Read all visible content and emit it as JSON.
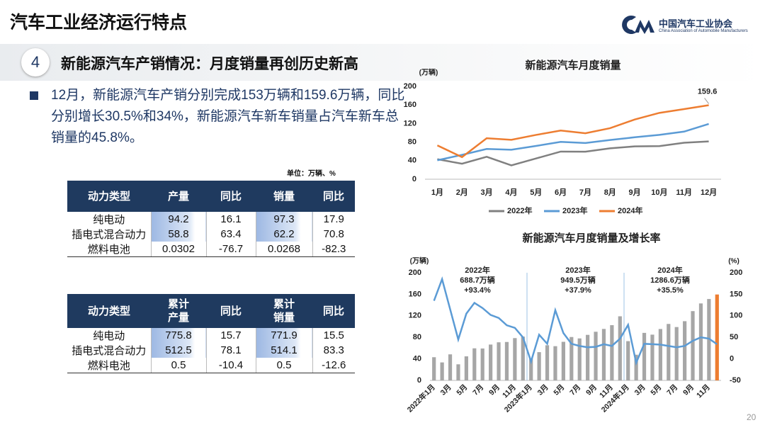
{
  "header": {
    "title": "汽车工业经济运行特点",
    "logo_cn": "中国汽车工业协会",
    "logo_en": "China Association of Automobile Manufacturers",
    "page": "20"
  },
  "section": {
    "number": "4",
    "heading": "新能源汽车产销情况：月度销量再创历史新高"
  },
  "bullet": "12月，新能源汽车产销分别完成153万辆和159.6万辆，同比分别增长30.5%和34%，新能源汽车新车销量占汽车新车总销量的45.8%。",
  "unit": "单位：万辆、%",
  "tables": [
    {
      "header": [
        "动力类型",
        "产量",
        "同比",
        "销量",
        "同比"
      ],
      "rows": [
        [
          "纯电动",
          "94.2",
          "16.1",
          "97.3",
          "17.9"
        ],
        [
          "插电式混合动力",
          "58.8",
          "63.4",
          "62.2",
          "70.8"
        ],
        [
          "燃料电池",
          "0.0302",
          "-76.7",
          "0.0268",
          "-82.3"
        ]
      ]
    },
    {
      "header": [
        "动力类型",
        "累计产量",
        "同比",
        "累计销量",
        "同比"
      ],
      "rows": [
        [
          "纯电动",
          "775.8",
          "15.7",
          "771.9",
          "15.5"
        ],
        [
          "插电式混合动力",
          "512.5",
          "78.1",
          "514.1",
          "83.3"
        ],
        [
          "燃料电池",
          "0.5",
          "-10.4",
          "0.5",
          "-12.6"
        ]
      ]
    }
  ],
  "chart_data": [
    {
      "type": "line",
      "title": "新能源汽车月度销量",
      "y_label": "(万辆)",
      "categories": [
        "1月",
        "2月",
        "3月",
        "4月",
        "5月",
        "6月",
        "7月",
        "8月",
        "9月",
        "10月",
        "11月",
        "12月"
      ],
      "series": [
        {
          "name": "2022年",
          "color": "#808080",
          "values": [
            43.1,
            33.4,
            48.4,
            29.9,
            44.7,
            59.6,
            59.3,
            66.6,
            70.8,
            71.4,
            78.6,
            81.4
          ]
        },
        {
          "name": "2023年",
          "color": "#5b9bd5",
          "values": [
            40.8,
            52.5,
            65.3,
            63.6,
            71.7,
            80.6,
            78.0,
            84.6,
            90.4,
            95.6,
            102.6,
            119.1
          ]
        },
        {
          "name": "2024年",
          "color": "#ed7d31",
          "values": [
            72.9,
            47.7,
            88.3,
            85.0,
            95.5,
            104.9,
            99.1,
            110.0,
            128.7,
            143.0,
            151.2,
            159.6
          ]
        }
      ],
      "ylim": [
        0,
        200
      ],
      "yticks": [
        0,
        40,
        80,
        120,
        160,
        200
      ],
      "grid": false,
      "legend": "bottom"
    },
    {
      "type": "bar",
      "title": "新能源汽车月度销量及增长率",
      "y_label": "(万辆)",
      "y2_label": "(%)",
      "categories": [
        "2022年1月",
        null,
        "3月",
        null,
        "5月",
        null,
        "7月",
        null,
        "9月",
        null,
        "11月",
        null,
        "2023年1月",
        null,
        "3月",
        null,
        "5月",
        null,
        "7月",
        null,
        "9月",
        null,
        "11月",
        null,
        "2024年1月",
        null,
        "3月",
        null,
        "5月",
        null,
        "7月",
        null,
        "9月",
        null,
        "11月",
        null
      ],
      "values": [
        43.1,
        33.4,
        48.4,
        29.9,
        44.7,
        59.6,
        59.3,
        66.6,
        70.8,
        71.4,
        78.6,
        81.4,
        40.8,
        52.5,
        65.3,
        63.6,
        71.7,
        80.6,
        78.0,
        84.6,
        90.4,
        95.6,
        102.6,
        119.1,
        72.9,
        47.7,
        88.3,
        85.0,
        95.5,
        104.9,
        99.1,
        110.0,
        128.7,
        143.0,
        151.2,
        159.6
      ],
      "colors": [
        "#a6a6a6",
        "#a6a6a6",
        "#a6a6a6",
        "#a6a6a6",
        "#a6a6a6",
        "#a6a6a6",
        "#a6a6a6",
        "#a6a6a6",
        "#a6a6a6",
        "#a6a6a6",
        "#a6a6a6",
        "#a6a6a6",
        "#a6a6a6",
        "#a6a6a6",
        "#a6a6a6",
        "#a6a6a6",
        "#a6a6a6",
        "#a6a6a6",
        "#a6a6a6",
        "#a6a6a6",
        "#a6a6a6",
        "#a6a6a6",
        "#a6a6a6",
        "#a6a6a6",
        "#a6a6a6",
        "#a6a6a6",
        "#a6a6a6",
        "#a6a6a6",
        "#a6a6a6",
        "#a6a6a6",
        "#a6a6a6",
        "#a6a6a6",
        "#a6a6a6",
        "#a6a6a6",
        "#a6a6a6",
        "#ed7d31"
      ],
      "line": {
        "axis": "y2",
        "color": "#5b9bd5",
        "values": [
          135,
          185,
          115,
          45,
          105,
          130,
          118,
          102,
          95,
          78,
          72,
          50,
          -6,
          56,
          35,
          113,
          60,
          35,
          30,
          27,
          28,
          34,
          30,
          47,
          79,
          -9,
          35,
          34,
          33,
          30,
          27,
          30,
          42,
          50,
          47,
          34
        ]
      },
      "annotations": [
        [
          "2022年",
          "688.7万辆",
          "+93.4%"
        ],
        [
          "2023年",
          "949.5万辆",
          "+37.9%"
        ],
        [
          "2024年",
          "1286.6万辆",
          "+35.5%"
        ]
      ],
      "ylim": [
        0,
        200
      ],
      "yticks": [
        0,
        40,
        80,
        120,
        160,
        200
      ],
      "y2lim": [
        -50,
        200
      ],
      "y2ticks": [
        -50,
        0,
        50,
        100,
        150,
        200
      ],
      "grid": false
    }
  ]
}
